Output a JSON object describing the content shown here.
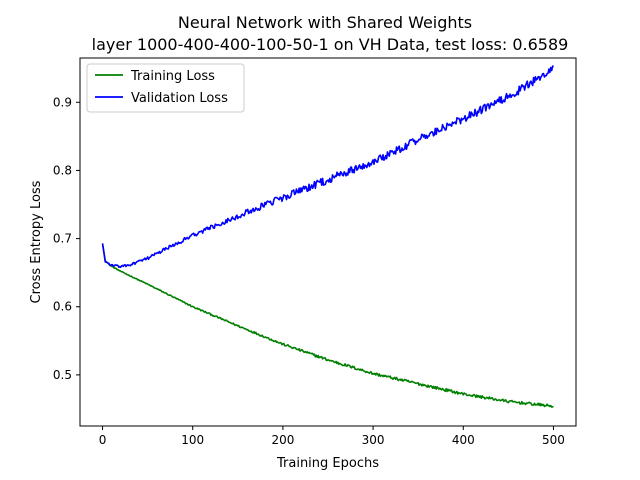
{
  "chart_data": {
    "type": "line",
    "title_line1": "Neural Network with Shared Weights",
    "title_line2": "layer 1000-400-400-100-50-1 on VH Data, test loss: 0.6589",
    "xlabel": "Training Epochs",
    "ylabel": "Cross Entropy Loss",
    "xlim": [
      -25,
      525
    ],
    "ylim": [
      0.425,
      0.965
    ],
    "xticks": [
      0,
      100,
      200,
      300,
      400,
      500
    ],
    "yticks": [
      0.5,
      0.6,
      0.7,
      0.8,
      0.9
    ],
    "xtick_labels": [
      "0",
      "100",
      "200",
      "300",
      "400",
      "500"
    ],
    "ytick_labels": [
      "0.5",
      "0.6",
      "0.7",
      "0.8",
      "0.9"
    ],
    "grid": false,
    "legend_position": "top-left",
    "series": [
      {
        "name": "Training Loss",
        "color": "#008000",
        "keypoints": [
          [
            0,
            0.692
          ],
          [
            3,
            0.668
          ],
          [
            8,
            0.661
          ],
          [
            20,
            0.652
          ],
          [
            50,
            0.633
          ],
          [
            100,
            0.6
          ],
          [
            150,
            0.572
          ],
          [
            200,
            0.545
          ],
          [
            250,
            0.522
          ],
          [
            300,
            0.502
          ],
          [
            350,
            0.487
          ],
          [
            400,
            0.472
          ],
          [
            450,
            0.461
          ],
          [
            500,
            0.454
          ]
        ],
        "noise": 0.002
      },
      {
        "name": "Validation Loss",
        "color": "#0000ff",
        "keypoints": [
          [
            0,
            0.693
          ],
          [
            3,
            0.666
          ],
          [
            10,
            0.661
          ],
          [
            20,
            0.659
          ],
          [
            30,
            0.661
          ],
          [
            50,
            0.671
          ],
          [
            100,
            0.705
          ],
          [
            150,
            0.733
          ],
          [
            200,
            0.76
          ],
          [
            250,
            0.786
          ],
          [
            300,
            0.813
          ],
          [
            350,
            0.845
          ],
          [
            400,
            0.876
          ],
          [
            450,
            0.908
          ],
          [
            500,
            0.949
          ]
        ],
        "noise": 0.006
      }
    ]
  }
}
